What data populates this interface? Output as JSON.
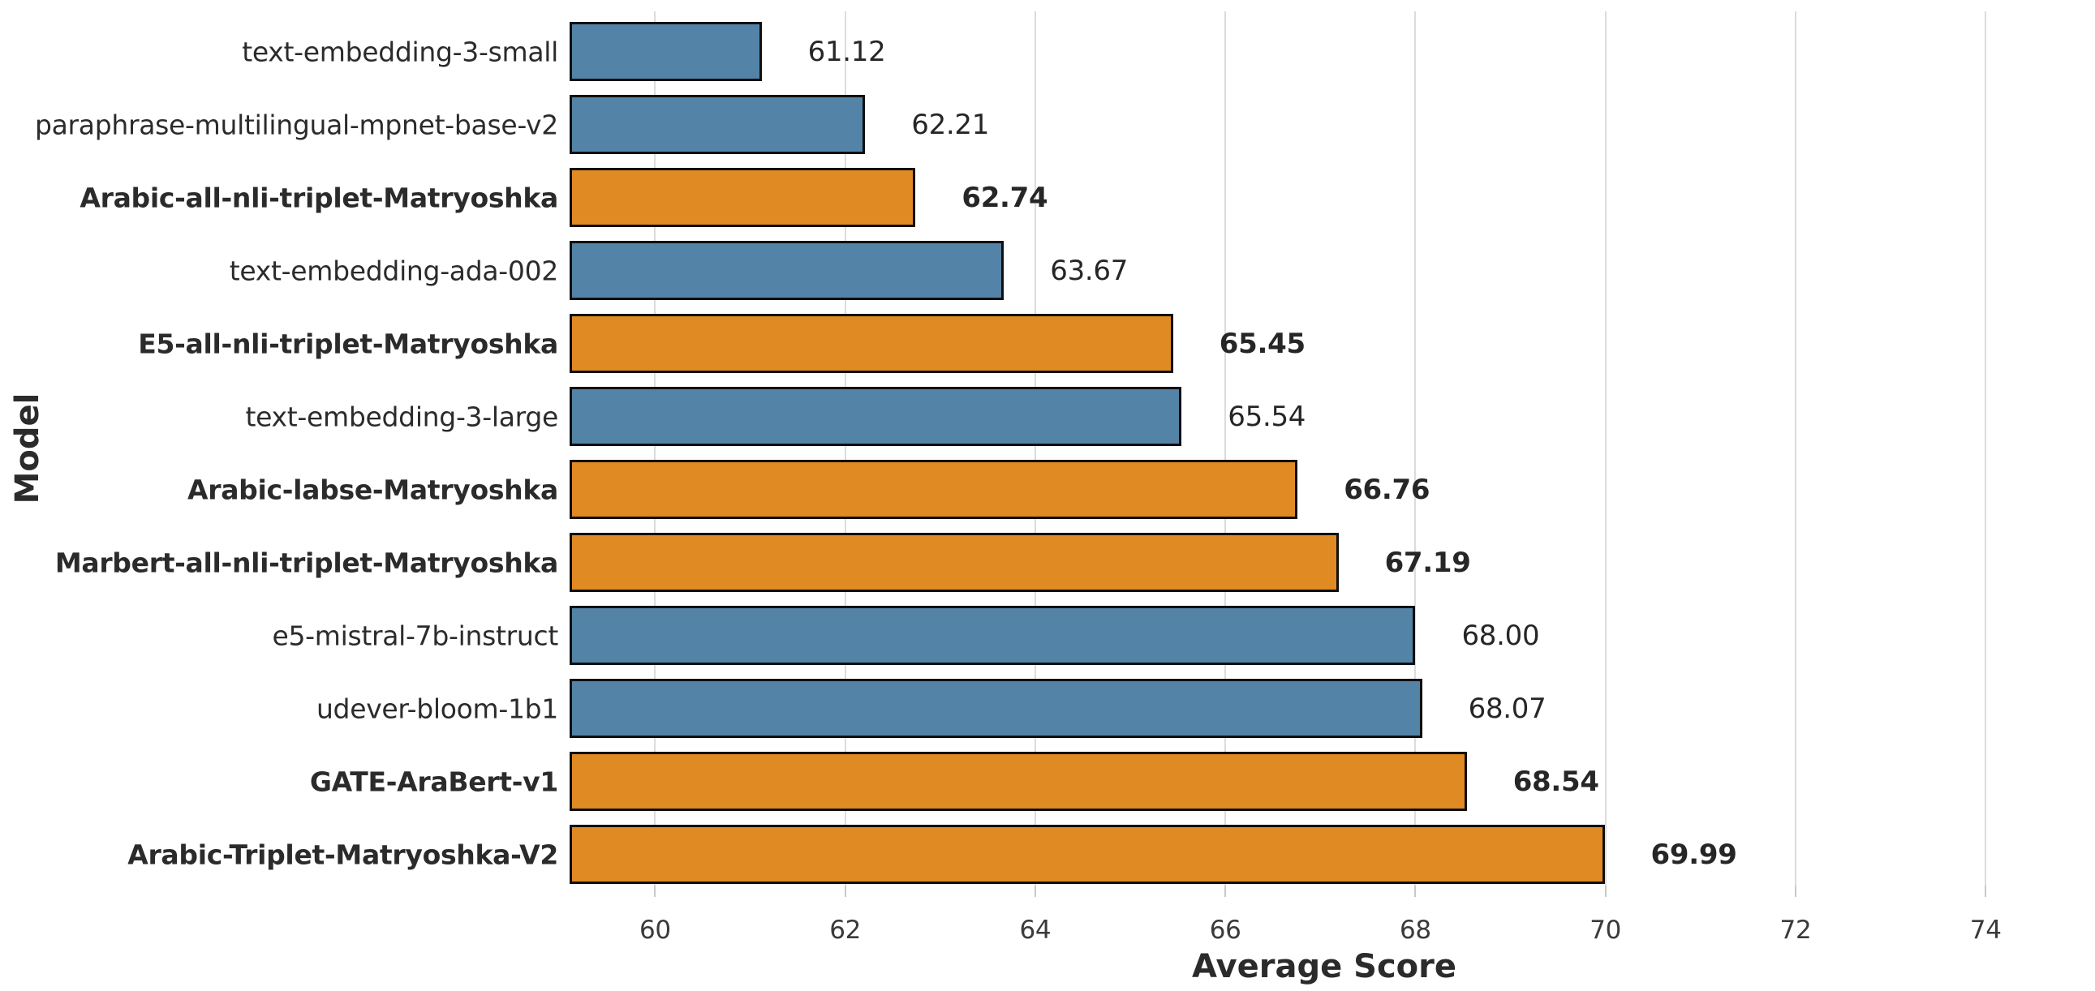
{
  "chart_data": {
    "type": "bar",
    "orientation": "horizontal",
    "xlabel": "Average Score",
    "ylabel": "Model",
    "xlim": [
      59.1,
      74.98
    ],
    "xticks": [
      60,
      62,
      64,
      66,
      68,
      70,
      72,
      74
    ],
    "grid": true,
    "categories": [
      "text-embedding-3-small",
      "paraphrase-multilingual-mpnet-base-v2",
      "Arabic-all-nli-triplet-Matryoshka",
      "text-embedding-ada-002",
      "E5-all-nli-triplet-Matryoshka",
      "text-embedding-3-large",
      "Arabic-labse-Matryoshka",
      "Marbert-all-nli-triplet-Matryoshka",
      "e5-mistral-7b-instruct",
      "udever-bloom-1b1",
      "GATE-AraBert-v1",
      "Arabic-Triplet-Matryoshka-V2"
    ],
    "values": [
      61.12,
      62.21,
      62.74,
      63.67,
      65.45,
      65.54,
      66.76,
      67.19,
      68.0,
      68.07,
      68.54,
      69.99
    ],
    "value_labels": [
      "61.12",
      "62.21",
      "62.74",
      "63.67",
      "65.45",
      "65.54",
      "66.76",
      "67.19",
      "68.00",
      "68.07",
      "68.54",
      "69.99"
    ],
    "highlighted": [
      false,
      false,
      true,
      false,
      true,
      false,
      true,
      true,
      false,
      false,
      true,
      true
    ],
    "colors": {
      "bar_default": "#5483A8",
      "bar_highlight": "#E08A24",
      "bar_border": "#0f0f0f",
      "gridline": "#dcdcdc",
      "tickmark": "#c9c9c9",
      "text": "#2b2b2b"
    }
  }
}
